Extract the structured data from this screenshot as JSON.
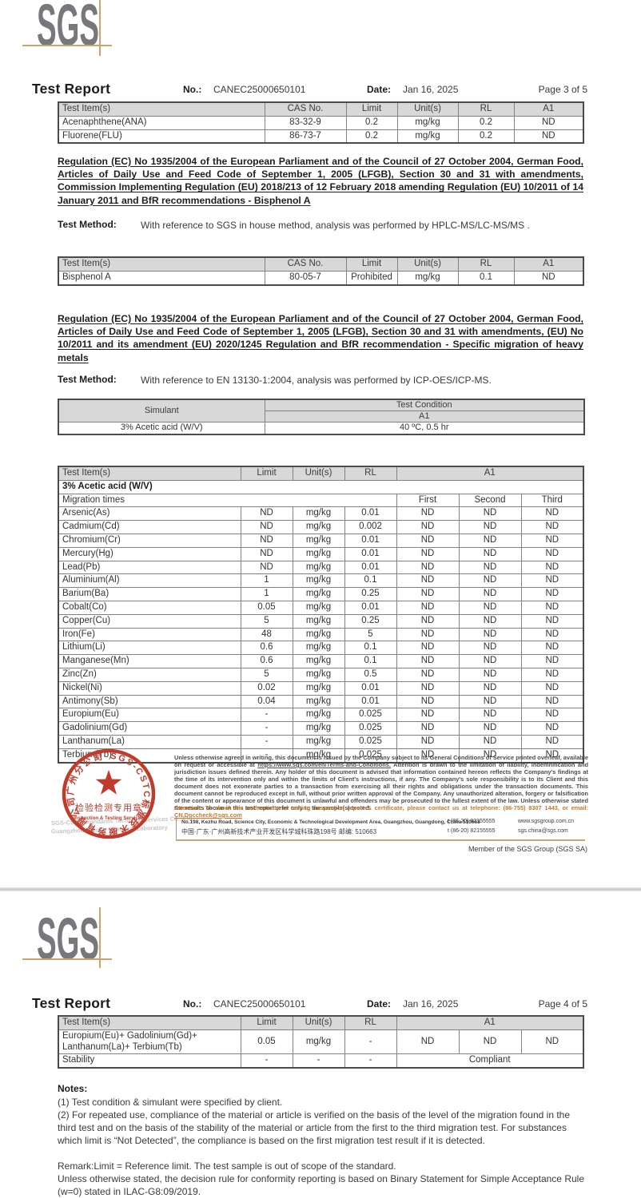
{
  "colors": {
    "logo_gray": "#77787B",
    "tan_accent": "#D2A26E",
    "stamp_red": "#BF3B2C",
    "attention_orange": "#C5792F",
    "table_header_bg": "#D8D8D8"
  },
  "logo_text": "SGS",
  "page3": {
    "header": {
      "title": "Test Report",
      "no_label": "No.:",
      "no": "CANEC25000650101",
      "date_label": "Date:",
      "date": "Jan 16, 2025",
      "page": "Page 3 of 5"
    },
    "pah_table": {
      "headers": [
        "Test Item(s)",
        "CAS No.",
        "Limit",
        "Unit(s)",
        "RL",
        "A1"
      ],
      "rows": [
        [
          "Acenaphthene(ANA)",
          "83-32-9",
          "0.2",
          "mg/kg",
          "0.2",
          "ND"
        ],
        [
          "Fluorene(FLU)",
          "86-73-7",
          "0.2",
          "mg/kg",
          "0.2",
          "ND"
        ]
      ]
    },
    "regulation1": "Regulation (EC) No 1935/2004 of the European Parliament and of the Council of 27 October 2004, German Food, Articles of Daily Use and Feed Code of September 1, 2005 (LFGB), Section 30 and 31 with amendments, Commission Implementing Regulation (EU) 2018/213 of 12 February 2018 amending Regulation (EU) 10/2011 of 14 January 2011 and BfR recommendations - Bisphenol A",
    "test_method1_label": "Test Method:",
    "test_method1": "With reference to SGS in house method, analysis was performed by HPLC-MS/LC-MS/MS .",
    "bpa_table": {
      "headers": [
        "Test Item(s)",
        "CAS No.",
        "Limit",
        "Unit(s)",
        "RL",
        "A1"
      ],
      "rows": [
        [
          "Bisphenol A",
          "80-05-7",
          "Prohibited",
          "mg/kg",
          "0.1",
          "ND"
        ]
      ]
    },
    "regulation2": "Regulation (EC) No 1935/2004 of the European Parliament and of the Council of 27 October 2004, German Food, Articles of Daily Use and Feed Code of September 1, 2005 (LFGB), Section 30 and 31 with amendments, (EU) No 10/2011 and its amendment (EU) 2020/1245 Regulation and BfR recommendation - Specific migration of heavy metals",
    "test_method2_label": "Test Method:",
    "test_method2": "With reference to EN 13130-1:2004, analysis was performed by ICP-OES/ICP-MS.",
    "simulant_table": {
      "simulant_header": "Simulant",
      "condition_header": "Test Condition",
      "condition_sub": "A1",
      "simulant_value": "3% Acetic acid (W/V)",
      "condition_value": "40 ºC, 0.5 hr"
    },
    "migration_table": {
      "headers": [
        "Test Item(s)",
        "Limit",
        "Unit(s)",
        "RL",
        "A1"
      ],
      "section": "3% Acetic acid (W/V)",
      "migration_label": "Migration times",
      "migration_cols": [
        "First",
        "Second",
        "Third"
      ],
      "rows": [
        [
          "Arsenic(As)",
          "ND",
          "mg/kg",
          "0.01",
          "ND",
          "ND",
          "ND"
        ],
        [
          "Cadmium(Cd)",
          "ND",
          "mg/kg",
          "0.002",
          "ND",
          "ND",
          "ND"
        ],
        [
          "Chromium(Cr)",
          "ND",
          "mg/kg",
          "0.01",
          "ND",
          "ND",
          "ND"
        ],
        [
          "Mercury(Hg)",
          "ND",
          "mg/kg",
          "0.01",
          "ND",
          "ND",
          "ND"
        ],
        [
          "Lead(Pb)",
          "ND",
          "mg/kg",
          "0.01",
          "ND",
          "ND",
          "ND"
        ],
        [
          "Aluminium(Al)",
          "1",
          "mg/kg",
          "0.1",
          "ND",
          "ND",
          "ND"
        ],
        [
          "Barium(Ba)",
          "1",
          "mg/kg",
          "0.25",
          "ND",
          "ND",
          "ND"
        ],
        [
          "Cobalt(Co)",
          "0.05",
          "mg/kg",
          "0.01",
          "ND",
          "ND",
          "ND"
        ],
        [
          "Copper(Cu)",
          "5",
          "mg/kg",
          "0.25",
          "ND",
          "ND",
          "ND"
        ],
        [
          "Iron(Fe)",
          "48",
          "mg/kg",
          "5",
          "ND",
          "ND",
          "ND"
        ],
        [
          "Lithium(Li)",
          "0.6",
          "mg/kg",
          "0.1",
          "ND",
          "ND",
          "ND"
        ],
        [
          "Manganese(Mn)",
          "0.6",
          "mg/kg",
          "0.1",
          "ND",
          "ND",
          "ND"
        ],
        [
          "Zinc(Zn)",
          "5",
          "mg/kg",
          "0.5",
          "ND",
          "ND",
          "ND"
        ],
        [
          "Nickel(Ni)",
          "0.02",
          "mg/kg",
          "0.01",
          "ND",
          "ND",
          "ND"
        ],
        [
          "Antimony(Sb)",
          "0.04",
          "mg/kg",
          "0.01",
          "ND",
          "ND",
          "ND"
        ],
        [
          "Europium(Eu)",
          "-",
          "mg/kg",
          "0.025",
          "ND",
          "ND",
          "ND"
        ],
        [
          "Gadolinium(Gd)",
          "-",
          "mg/kg",
          "0.025",
          "ND",
          "ND",
          "ND"
        ],
        [
          "Lanthanum(La)",
          "-",
          "mg/kg",
          "0.025",
          "ND",
          "ND",
          "ND"
        ],
        [
          "Terbium(Tb)",
          "-",
          "mg/kg",
          "0.025",
          "ND",
          "ND",
          "ND"
        ]
      ]
    }
  },
  "footer": {
    "stamp": {
      "ring_text": "SGS-CSTC标准技术服务有限公司广州分公司",
      "center_cn": "检验检测专用章",
      "center_en": "Inspection & Testing Services"
    },
    "company_line1": "SGS-CSTC Standards Technical Services Co., Ltd.",
    "company_line2": "Guangzhou Branch Chemical Laboratory",
    "disclaimer_pre": "Unless otherwise agreed in writing, this document is issued by the Company subject to its General Conditions of Service printed overleaf, available on request or accessible at ",
    "terms_link": "https://www.sgs.com/en/Terms-and-Conditions.",
    "disclaimer_post": " Attention is drawn to the limitation of liability, indemnification and jurisdiction issues defined therein. Any holder of this document is advised that information contained hereon reflects the Company's findings at the time of its intervention only and within the limits of Client's instructions, if any. The Company's sole responsibility is to its Client and this document does not exonerate parties to a transaction from exercising all their rights and obligations under the transaction documents. This document cannot be reproduced except in full, without prior written approval of the Company. Any unauthorized alteration, forgery or falsification of the content or appearance of this document is unlawful and offenders may be prosecuted to the fullest extent of the law. Unless otherwise stated the results shown in this test report refer only to the sample(s) tested.",
    "attention_text": "Attention: To check the authenticity of testing /inspection report & certificate, please contact us at telephone: (86-755) 8307 1443, or email: ",
    "attention_email": "CN.Doccheck@sgs.com",
    "address_en": "No.198, Kezhu Road, Science City, Economic & Technological Development Area, Guangzhou, Guangdong, China 510663",
    "address_cn": "中国·广东·广州高新技术产业开发区科学城科珠路198号  邮编: 510663",
    "phone": "t (86-20) 82155555",
    "website": "www.sgsgroup.com.cn",
    "email": "sgs.china@sgs.com",
    "member": "Member of the SGS Group (SGS SA)"
  },
  "page4": {
    "header": {
      "title": "Test Report",
      "no_label": "No.:",
      "no": "CANEC25000650101",
      "date_label": "Date:",
      "date": "Jan 16, 2025",
      "page": "Page 4 of 5"
    },
    "table": {
      "headers": [
        "Test Item(s)",
        "Limit",
        "Unit(s)",
        "RL",
        "A1"
      ],
      "rows": [
        [
          "Europium(Eu)+ Gadolinium(Gd)+ Lanthanum(La)+ Terbium(Tb)",
          "0.05",
          "mg/kg",
          "-",
          "ND",
          "ND",
          "ND"
        ]
      ],
      "stability": {
        "label": "Stability",
        "limit": "-",
        "unit": "-",
        "rl": "-",
        "result": "Compliant"
      }
    },
    "notes_title": "Notes:",
    "note1": "(1) Test condition & simulant were specified by client.",
    "note2": "(2) For repeated use, compliance of the material or article is verified on the basis of the level of the migration found in the third test and on the basis of the stability of the material or article from the first to the third migration test. For substances which limit is “Not Detected”, the compliance is based on the first migration test result if it is detected.",
    "remark": "Remark:Limit = Reference limit. The test sample is out of scope of the standard.",
    "decision_rule": "Unless otherwise stated, the decision rule for conformity reporting is based on Binary Statement for Simple Acceptance Rule (w=0) stated in ILAC-G8:09/2019."
  }
}
